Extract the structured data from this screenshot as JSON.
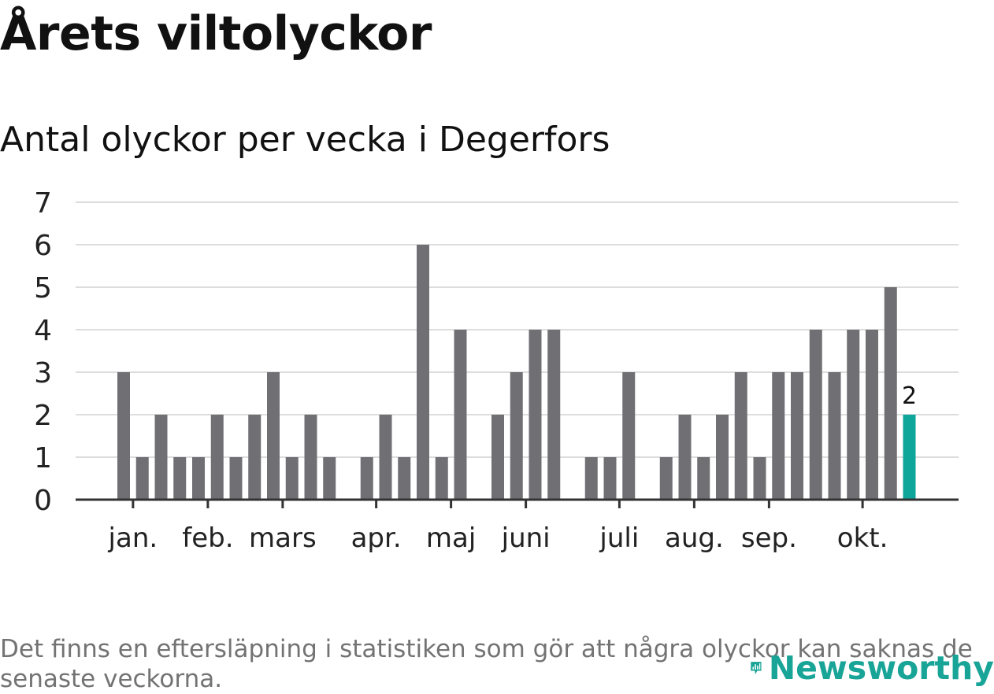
{
  "header": {
    "title": "Årets viltolyckor",
    "subtitle": "Antal olyckor per vecka i Degerfors"
  },
  "footnote": "Det finns en eftersläpning i statistiken som gör att några olyckor kan saknas de senaste veckorna.",
  "logo": {
    "text": "Newsworthy",
    "icon": "newsworthy-logo-icon"
  },
  "colors": {
    "bar": "#706f73",
    "highlight": "#0ea59b",
    "grid": "#dddddd",
    "axis": "#333333",
    "logo": "#18a497"
  },
  "chart_data": {
    "type": "bar",
    "title": "Antal olyckor per vecka i Degerfors",
    "x_unit": "week",
    "x": [
      1,
      2,
      3,
      4,
      5,
      6,
      7,
      8,
      9,
      10,
      11,
      12,
      13,
      14,
      15,
      16,
      17,
      18,
      19,
      20,
      21,
      22,
      23,
      24,
      25,
      26,
      27,
      28,
      29,
      30,
      31,
      32,
      33,
      34,
      35,
      36,
      37,
      38,
      39,
      40,
      41,
      42,
      43
    ],
    "values": [
      3,
      1,
      2,
      1,
      1,
      2,
      1,
      2,
      3,
      1,
      2,
      1,
      0,
      1,
      2,
      1,
      6,
      1,
      4,
      0,
      2,
      3,
      4,
      4,
      0,
      1,
      1,
      3,
      0,
      1,
      2,
      1,
      2,
      3,
      1,
      3,
      3,
      4,
      3,
      4,
      4,
      5,
      2
    ],
    "highlight_index": 42,
    "data_labels": [
      {
        "index": 42,
        "text": "2"
      }
    ],
    "ylim": [
      0,
      7
    ],
    "yticks": [
      0,
      1,
      2,
      3,
      4,
      5,
      6,
      7
    ],
    "xticks": [
      {
        "week": 1.5,
        "label": "jan."
      },
      {
        "week": 5.5,
        "label": "feb."
      },
      {
        "week": 9.5,
        "label": "mars"
      },
      {
        "week": 14.5,
        "label": "apr."
      },
      {
        "week": 18.5,
        "label": "maj"
      },
      {
        "week": 22.5,
        "label": "juni"
      },
      {
        "week": 27.5,
        "label": "juli"
      },
      {
        "week": 31.5,
        "label": "aug."
      },
      {
        "week": 35.5,
        "label": "sep."
      },
      {
        "week": 40.5,
        "label": "okt."
      }
    ],
    "grid": true,
    "legend": "none",
    "xlabel": "",
    "ylabel": ""
  }
}
